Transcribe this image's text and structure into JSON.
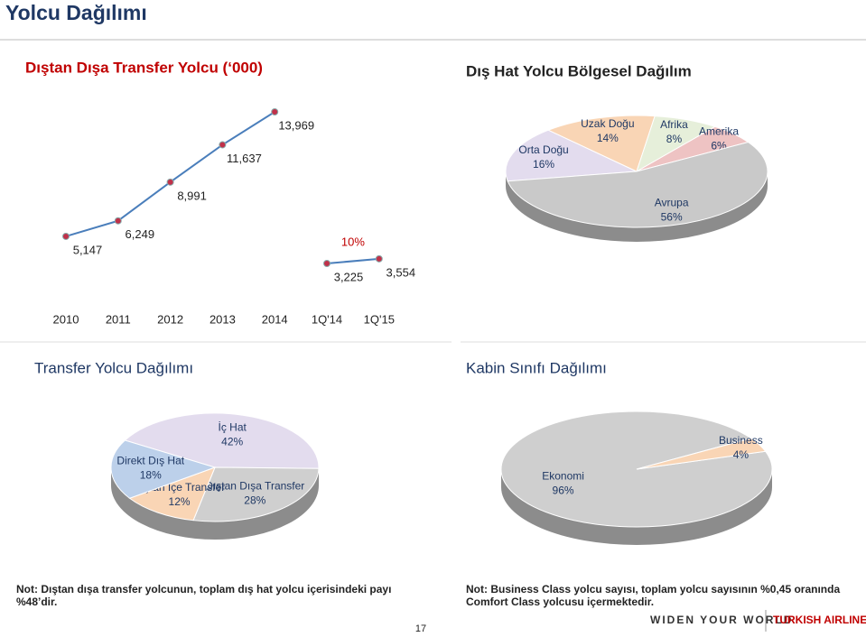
{
  "title": "Yolcu Dağılımı",
  "chart_data": [
    {
      "type": "line",
      "title": "Dıştan Dışa Transfer Yolcu (‘000)",
      "categories": [
        "2010",
        "2011",
        "2012",
        "2013",
        "2014",
        "1Q'14",
        "1Q'15"
      ],
      "series": [
        {
          "color": "#4a7ebb",
          "values": [
            5147,
            6249,
            8991,
            11637,
            13969,
            null,
            null
          ],
          "value_labels": [
            "5,147",
            "6,249",
            "8,991",
            "11,637",
            "13,969",
            null,
            null
          ]
        },
        {
          "color": "#4a7ebb",
          "values": [
            null,
            null,
            null,
            null,
            null,
            3225,
            3554
          ],
          "value_labels": [
            null,
            null,
            null,
            null,
            null,
            "3,225",
            "3,554"
          ]
        }
      ],
      "annotations": [
        {
          "text": "10%",
          "color": "#c00000"
        }
      ]
    },
    {
      "type": "pie",
      "title": "Dış Hat Yolcu Bölgesel Dağılım",
      "categories": [
        "Orta Doğu",
        "Uzak Doğu",
        "Afrika",
        "Amerika",
        "Avrupa"
      ],
      "values": [
        16,
        14,
        8,
        6,
        56
      ],
      "value_labels": [
        "16%",
        "14%",
        "8%",
        "6%",
        "56%"
      ],
      "colors": [
        "#e3dcee",
        "#f9d5b5",
        "#e6efda",
        "#eec3c3",
        "#c9c9c9"
      ]
    },
    {
      "type": "pie",
      "title": "Transfer Yolcu Dağılımı",
      "categories": [
        "İç Hat",
        "Dıştan Dışa Transfer",
        "Dıştan İçe Transfer",
        "Direkt Dış Hat"
      ],
      "values": [
        42,
        28,
        12,
        18
      ],
      "value_labels": [
        "42%",
        "28%",
        "12%",
        "18%"
      ],
      "colors": [
        "#e3dcee",
        "#cfcfcf",
        "#f9d5b5",
        "#bcd0ea"
      ]
    },
    {
      "type": "pie",
      "title": "Kabin Sınıfı Dağılımı",
      "categories": [
        "Ekonomi",
        "Business"
      ],
      "values": [
        96,
        4
      ],
      "value_labels": [
        "96%",
        "4%"
      ],
      "colors": [
        "#cfcfcf",
        "#f9d5b5"
      ]
    }
  ],
  "notes": [
    "Not: Dıştan dışa transfer yolcunun, toplam dış hat yolcu içerisindeki payı %48’dir.",
    "Not: Business Class yolcu sayısı, toplam yolcu sayısının %0,45 oranında Comfort Class yolcusu içermektedir."
  ],
  "page_number": "17",
  "footer": {
    "slogan": "WIDEN YOUR WORLD",
    "brand": "TURKISH AIRLINES"
  }
}
